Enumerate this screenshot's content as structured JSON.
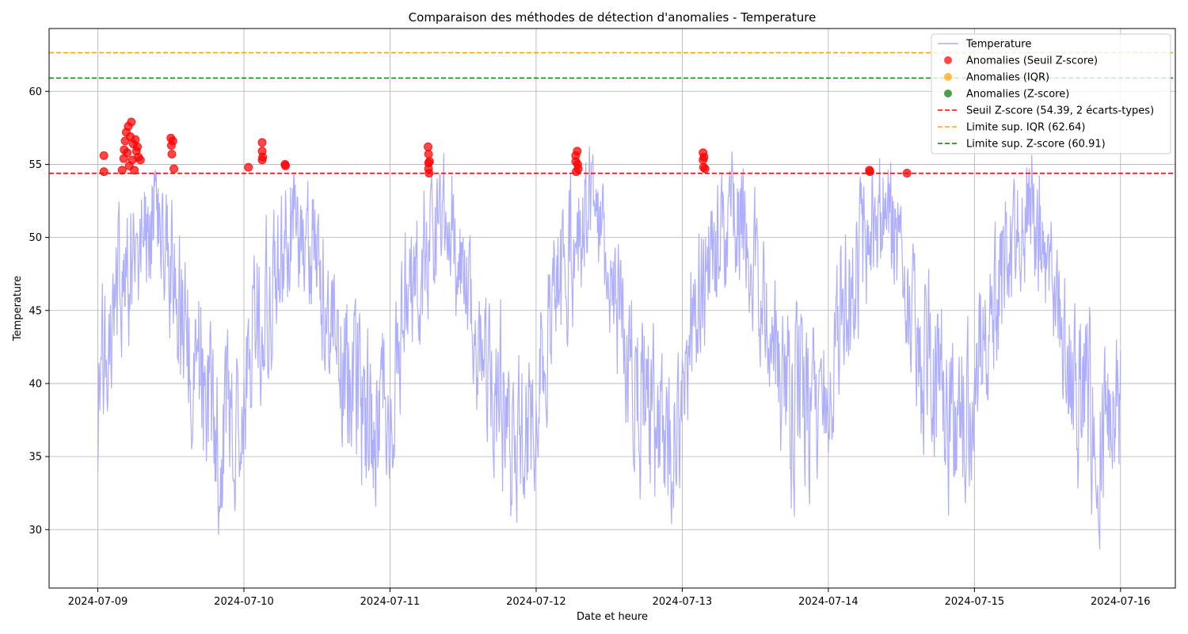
{
  "chart_data": {
    "type": "line",
    "title": "Comparaison des méthodes de détection d'anomalies - Temperature",
    "xlabel": "Date et heure",
    "ylabel": "Temperature",
    "x_range": [
      "2024-07-08T16:00",
      "2024-07-16T09:00"
    ],
    "ylim": [
      26.0,
      64.3
    ],
    "x_ticks": [
      "2024-07-09",
      "2024-07-10",
      "2024-07-11",
      "2024-07-12",
      "2024-07-13",
      "2024-07-14",
      "2024-07-15",
      "2024-07-16"
    ],
    "y_ticks": [
      30,
      35,
      40,
      45,
      50,
      55,
      60
    ],
    "grid": true,
    "legend_position": "top-right",
    "colors": {
      "series": "#aaaaff",
      "anomaly_zscore_threshold": "#ff0000",
      "anomaly_iqr": "#ffa500",
      "anomaly_zscore": "#008000",
      "line_zscore_threshold": "#ff0000",
      "line_iqr_limit": "#ffa500",
      "line_zscore_limit": "#008000"
    },
    "series_name": "Temperature",
    "daily_profile": {
      "note_hours": [
        0,
        2,
        4,
        6,
        8,
        10,
        12,
        14,
        16,
        18,
        20,
        22,
        24
      ],
      "envelope_min": [
        33.5,
        38,
        40,
        44,
        46,
        45,
        43,
        38,
        33,
        31,
        29,
        30,
        33
      ],
      "envelope_max": [
        45,
        51,
        53,
        55,
        57,
        56,
        53,
        50,
        48,
        47,
        45,
        44,
        45
      ]
    },
    "anomalies_zscore_threshold": [
      {
        "x": "2024-07-09T01:00",
        "y": 55.6
      },
      {
        "x": "2024-07-09T01:00",
        "y": 54.5
      },
      {
        "x": "2024-07-09T04:00",
        "y": 54.6
      },
      {
        "x": "2024-07-09T04:15",
        "y": 55.4
      },
      {
        "x": "2024-07-09T04:20",
        "y": 56.0
      },
      {
        "x": "2024-07-09T04:30",
        "y": 56.6
      },
      {
        "x": "2024-07-09T04:40",
        "y": 57.2
      },
      {
        "x": "2024-07-09T04:50",
        "y": 55.8
      },
      {
        "x": "2024-07-09T05:00",
        "y": 57.6
      },
      {
        "x": "2024-07-09T05:10",
        "y": 54.9
      },
      {
        "x": "2024-07-09T05:20",
        "y": 56.9
      },
      {
        "x": "2024-07-09T05:30",
        "y": 57.9
      },
      {
        "x": "2024-07-09T05:40",
        "y": 55.3
      },
      {
        "x": "2024-07-09T05:50",
        "y": 56.4
      },
      {
        "x": "2024-07-09T06:00",
        "y": 54.6
      },
      {
        "x": "2024-07-09T06:10",
        "y": 56.7
      },
      {
        "x": "2024-07-09T06:20",
        "y": 55.9
      },
      {
        "x": "2024-07-09T06:30",
        "y": 56.2
      },
      {
        "x": "2024-07-09T06:40",
        "y": 55.5
      },
      {
        "x": "2024-07-09T07:00",
        "y": 55.3
      },
      {
        "x": "2024-07-09T12:00",
        "y": 56.8
      },
      {
        "x": "2024-07-09T12:05",
        "y": 56.3
      },
      {
        "x": "2024-07-09T12:10",
        "y": 55.7
      },
      {
        "x": "2024-07-09T12:20",
        "y": 56.6
      },
      {
        "x": "2024-07-09T12:30",
        "y": 54.7
      },
      {
        "x": "2024-07-10T00:45",
        "y": 54.8
      },
      {
        "x": "2024-07-10T03:00",
        "y": 56.5
      },
      {
        "x": "2024-07-10T03:00",
        "y": 55.9
      },
      {
        "x": "2024-07-10T03:00",
        "y": 55.3
      },
      {
        "x": "2024-07-10T03:05",
        "y": 55.5
      },
      {
        "x": "2024-07-10T06:45",
        "y": 55.0
      },
      {
        "x": "2024-07-10T06:50",
        "y": 54.9
      },
      {
        "x": "2024-07-11T06:15",
        "y": 56.2
      },
      {
        "x": "2024-07-11T06:20",
        "y": 55.7
      },
      {
        "x": "2024-07-11T06:20",
        "y": 55.1
      },
      {
        "x": "2024-07-11T06:20",
        "y": 54.7
      },
      {
        "x": "2024-07-11T06:25",
        "y": 54.4
      },
      {
        "x": "2024-07-11T06:30",
        "y": 55.2
      },
      {
        "x": "2024-07-12T06:30",
        "y": 55.6
      },
      {
        "x": "2024-07-12T06:30",
        "y": 55.2
      },
      {
        "x": "2024-07-12T06:35",
        "y": 54.5
      },
      {
        "x": "2024-07-12T06:45",
        "y": 55.9
      },
      {
        "x": "2024-07-12T06:50",
        "y": 55.0
      },
      {
        "x": "2024-07-12T06:55",
        "y": 54.7
      },
      {
        "x": "2024-07-13T03:25",
        "y": 55.8
      },
      {
        "x": "2024-07-13T03:25",
        "y": 55.3
      },
      {
        "x": "2024-07-13T03:30",
        "y": 54.8
      },
      {
        "x": "2024-07-13T03:35",
        "y": 55.5
      },
      {
        "x": "2024-07-13T03:45",
        "y": 54.7
      },
      {
        "x": "2024-07-14T06:45",
        "y": 54.6
      },
      {
        "x": "2024-07-14T06:50",
        "y": 54.5
      },
      {
        "x": "2024-07-14T12:55",
        "y": 54.4
      }
    ],
    "anomalies_iqr": [],
    "anomalies_zscore": [],
    "threshold_lines": [
      {
        "key": "zscore_threshold",
        "value": 54.39
      },
      {
        "key": "iqr_limit",
        "value": 62.64
      },
      {
        "key": "zscore_limit",
        "value": 60.91
      }
    ],
    "legend": {
      "series": "Temperature",
      "anomalies_zscore_threshold": "Anomalies (Seuil Z-score)",
      "anomalies_iqr": "Anomalies (IQR)",
      "anomalies_zscore": "Anomalies (Z-score)",
      "zscore_threshold_line": "Seuil Z-score (54.39, 2 écarts-types)",
      "iqr_limit_line": "Limite sup. IQR (62.64)",
      "zscore_limit_line": "Limite sup. Z-score (60.91)"
    }
  }
}
